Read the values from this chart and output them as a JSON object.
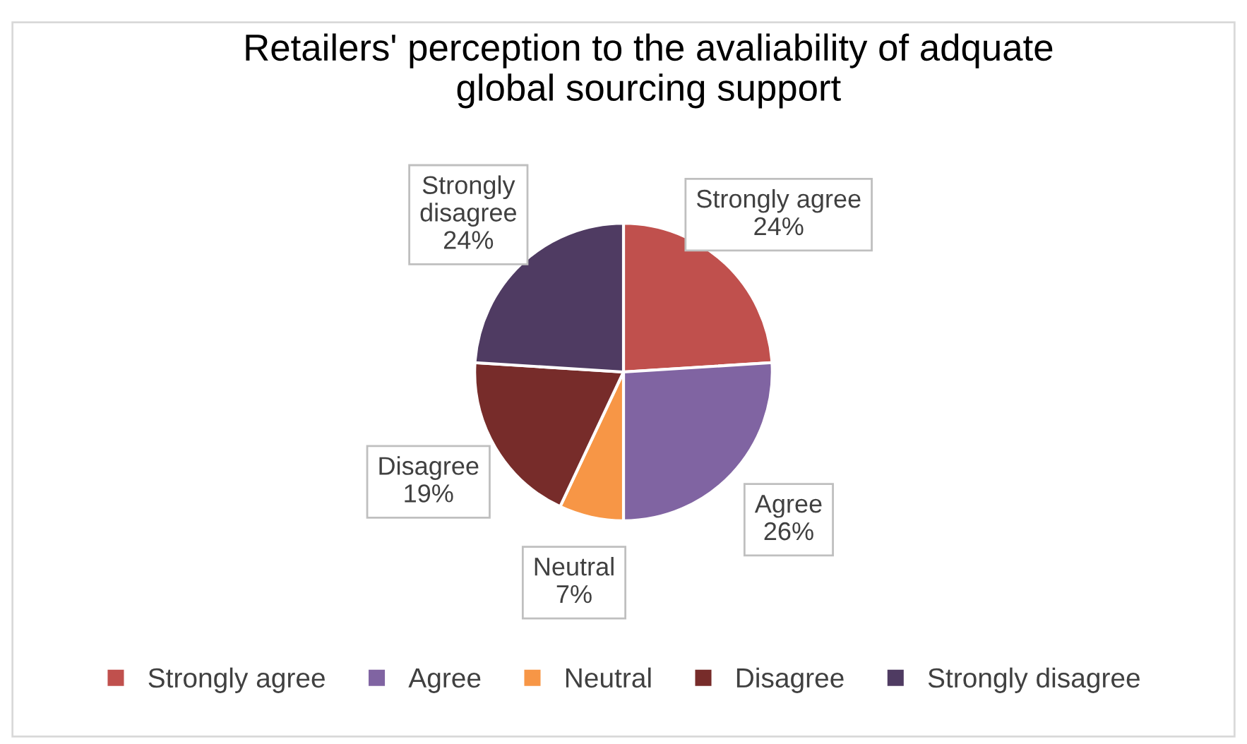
{
  "chart_data": {
    "type": "pie",
    "title": "Retailers' perception to the avaliability of adquate\nglobal sourcing support",
    "categories": [
      "Strongly agree",
      "Agree",
      "Neutral",
      "Disagree",
      "Strongly disagree"
    ],
    "values": [
      24,
      26,
      7,
      19,
      24
    ],
    "value_labels": [
      "24%",
      "26%",
      "7%",
      "19%",
      "24%"
    ],
    "colors": [
      "#c0504d",
      "#8064a2",
      "#f79646",
      "#772c2a",
      "#4f3b62"
    ],
    "legend": "bottom"
  }
}
